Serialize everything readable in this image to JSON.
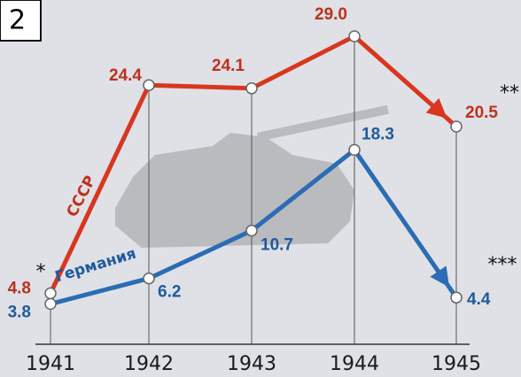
{
  "chart_data": {
    "type": "line",
    "badge": "2",
    "categories": [
      "1941",
      "1942",
      "1943",
      "1944",
      "1945"
    ],
    "series": [
      {
        "name": "СССР",
        "color": "#d9361f",
        "label_color": "#c0301c",
        "values": [
          4.8,
          24.4,
          24.1,
          29.0,
          20.5
        ],
        "value_labels": [
          "4.8",
          "24.4",
          "24.1",
          "29.0",
          "20.5"
        ]
      },
      {
        "name": "Германия",
        "color": "#2b6cb4",
        "label_color": "#1f5a9e",
        "values": [
          3.8,
          6.2,
          10.7,
          18.3,
          4.4
        ],
        "value_labels": [
          "3.8",
          "6.2",
          "10.7",
          "18.3",
          "4.4"
        ]
      }
    ],
    "annotations": [
      "*",
      "**",
      "***"
    ],
    "ylim": [
      0,
      30
    ]
  }
}
